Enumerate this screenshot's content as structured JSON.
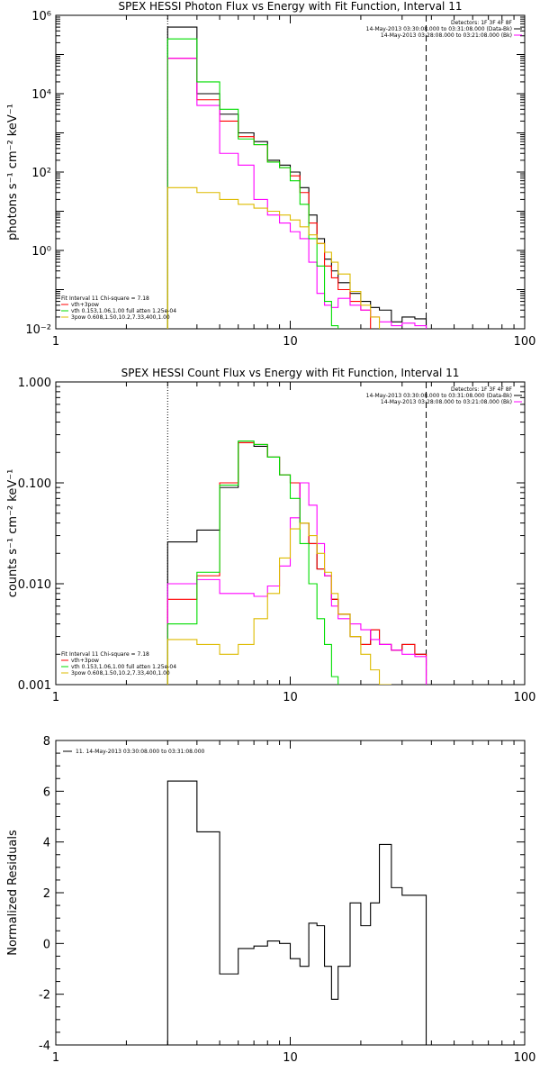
{
  "chart_data": [
    {
      "type": "line",
      "title": "SPEX HESSI Photon Flux vs Energy with Fit Function, Interval 11",
      "ylabel": "photons s⁻¹ cm⁻² keV⁻¹",
      "xlabel": "",
      "xscale": "log",
      "yscale": "log",
      "xlim": [
        1,
        100
      ],
      "ylim": [
        0.01,
        1000000
      ],
      "x_ticks": [
        "1",
        "10",
        "100"
      ],
      "y_ticks": [
        "10⁻²",
        "10⁰",
        "10²",
        "10⁴",
        "10⁶"
      ],
      "vlines": [
        {
          "x": 3,
          "style": "dotted"
        },
        {
          "x": 38,
          "style": "dashed"
        }
      ],
      "header": [
        "Detectors: 1F 3F 4F 8F",
        "14-May-2013 03:30:08.000 to 03:31:08.000 (Data-Bk)",
        "14-May-2013 03:28:08.000 to 03:21:08.000 (Bk)"
      ],
      "legend": [
        "Fit Interval 11   Chi-square = 7.18",
        "vth+3pow",
        "vth 0.153,1.06,1.00  full atten 1.25e-04",
        "3pow 0.608,1.50,10.2,7.33,400,1.00"
      ],
      "legend_placement": "bottom-left",
      "edges": [
        3,
        4,
        5,
        6,
        7,
        8,
        9,
        10,
        11,
        12,
        13,
        14,
        15,
        16,
        18,
        20,
        22,
        24,
        27,
        30,
        34,
        38
      ],
      "series": [
        {
          "color": "#000000",
          "values": [
            500000,
            10000,
            3000,
            1000,
            600,
            200,
            150,
            100,
            40,
            8,
            2,
            0.6,
            0.3,
            0.15,
            0.08,
            0.05,
            0.035,
            0.03,
            0.015,
            0.02,
            0.018
          ]
        },
        {
          "color": "#ff0000",
          "values": [
            80000,
            7000,
            2000,
            800,
            500,
            180,
            130,
            80,
            30,
            5,
            1.5,
            0.4,
            0.2,
            0.1,
            0.05,
            0.03
          ]
        },
        {
          "color": "#ff00ff",
          "values": [
            80000,
            5000,
            300,
            150,
            20,
            8,
            5,
            3,
            2,
            0.5,
            0.08,
            0.04,
            0.035,
            0.06,
            0.04,
            0.03,
            0.02,
            0.015,
            0.012,
            0.014,
            0.012
          ]
        },
        {
          "color": "#00dd00",
          "values": [
            250000,
            20000,
            4000,
            700,
            500,
            180,
            130,
            60,
            15,
            2,
            0.4,
            0.05,
            0.012,
            0.005
          ]
        },
        {
          "color": "#ddbb00",
          "values": [
            40,
            30,
            20,
            15,
            12,
            10,
            8,
            6,
            4,
            2.5,
            1.5,
            0.9,
            0.5,
            0.25,
            0.09,
            0.04,
            0.02,
            0.009
          ]
        }
      ]
    },
    {
      "type": "line",
      "title": "SPEX HESSI Count Flux vs Energy with Fit Function, Interval 11",
      "ylabel": "counts s⁻¹ cm⁻² keV⁻¹",
      "xlabel": "",
      "xscale": "log",
      "yscale": "log",
      "xlim": [
        1,
        100
      ],
      "ylim": [
        0.001,
        1.0
      ],
      "x_ticks": [
        "1",
        "10",
        "100"
      ],
      "y_ticks": [
        "0.001",
        "0.010",
        "0.100",
        "1.000"
      ],
      "vlines": [
        {
          "x": 3,
          "style": "dotted"
        },
        {
          "x": 38,
          "style": "dashed"
        }
      ],
      "header": [
        "Detectors: 1F 3F 4F 8F",
        "14-May-2013 03:30:08.000 to 03:31:08.000 (Data-Bk)",
        "14-May-2013 03:28:08.000 to 03:21:08.000 (Bk)"
      ],
      "legend": [
        "Fit Interval 11   Chi-square = 7.18",
        "vth+3pow",
        "vth 0.153,1.06,1.00  full atten 1.25e-04",
        "3pow 0.608,1.50,10.2,7.33,400,1.00"
      ],
      "legend_placement": "bottom-left",
      "edges": [
        3,
        4,
        5,
        6,
        7,
        8,
        9,
        10,
        11,
        12,
        13,
        14,
        15,
        16,
        18,
        20,
        22,
        24,
        27,
        30,
        34,
        38
      ],
      "series": [
        {
          "color": "#000000",
          "values": [
            0.026,
            0.034,
            0.09,
            0.25,
            0.23,
            0.18,
            0.12,
            0.1,
            0.04,
            0.025,
            0.014,
            0.012,
            0.007,
            0.005,
            0.003,
            0.0025,
            0.0035,
            0.0025,
            0.0022,
            0.0025,
            0.002
          ]
        },
        {
          "color": "#ff0000",
          "values": [
            0.007,
            0.012,
            0.1,
            0.25,
            0.24,
            0.18,
            0.12,
            0.1,
            0.04,
            0.025,
            0.014,
            0.012,
            0.007,
            0.005,
            0.003,
            0.0025,
            0.0035,
            0.0025,
            0.0022,
            0.0025,
            0.002
          ]
        },
        {
          "color": "#ff00ff",
          "values": [
            0.01,
            0.011,
            0.008,
            0.008,
            0.0075,
            0.0095,
            0.015,
            0.045,
            0.1,
            0.06,
            0.025,
            0.012,
            0.006,
            0.0045,
            0.004,
            0.0035,
            0.0028,
            0.0025,
            0.0022,
            0.002,
            0.0019
          ]
        },
        {
          "color": "#00dd00",
          "values": [
            0.004,
            0.013,
            0.095,
            0.26,
            0.24,
            0.18,
            0.12,
            0.07,
            0.025,
            0.01,
            0.0045,
            0.0025,
            0.0012
          ]
        },
        {
          "color": "#ddbb00",
          "values": [
            0.0028,
            0.0025,
            0.002,
            0.0025,
            0.0045,
            0.008,
            0.018,
            0.035,
            0.04,
            0.03,
            0.02,
            0.013,
            0.008,
            0.005,
            0.003,
            0.002,
            0.0014,
            0.001
          ]
        }
      ]
    },
    {
      "type": "line",
      "title": "",
      "ylabel": "Normalized Residuals",
      "xlabel": "",
      "xscale": "log",
      "yscale": "linear",
      "xlim": [
        1,
        100
      ],
      "ylim": [
        -4,
        8
      ],
      "x_ticks": [
        "1",
        "10",
        "100"
      ],
      "y_ticks": [
        "-4",
        "-2",
        "0",
        "2",
        "4",
        "6",
        "8"
      ],
      "legend": [
        "11. 14-May-2013 03:30:08.000 to 03:31:08.000"
      ],
      "legend_placement": "top-left",
      "edges": [
        3,
        4,
        5,
        6,
        7,
        8,
        9,
        10,
        11,
        12,
        13,
        14,
        15,
        16,
        18,
        20,
        22,
        24,
        27,
        30,
        34,
        38
      ],
      "series": [
        {
          "color": "#000000",
          "values": [
            6.4,
            4.4,
            -1.2,
            -0.2,
            -0.1,
            0.1,
            0.0,
            -0.6,
            -0.9,
            0.8,
            0.7,
            -0.9,
            -2.2,
            -0.9,
            1.6,
            0.7,
            1.6,
            3.9,
            2.2,
            1.9,
            1.9
          ]
        }
      ]
    }
  ]
}
